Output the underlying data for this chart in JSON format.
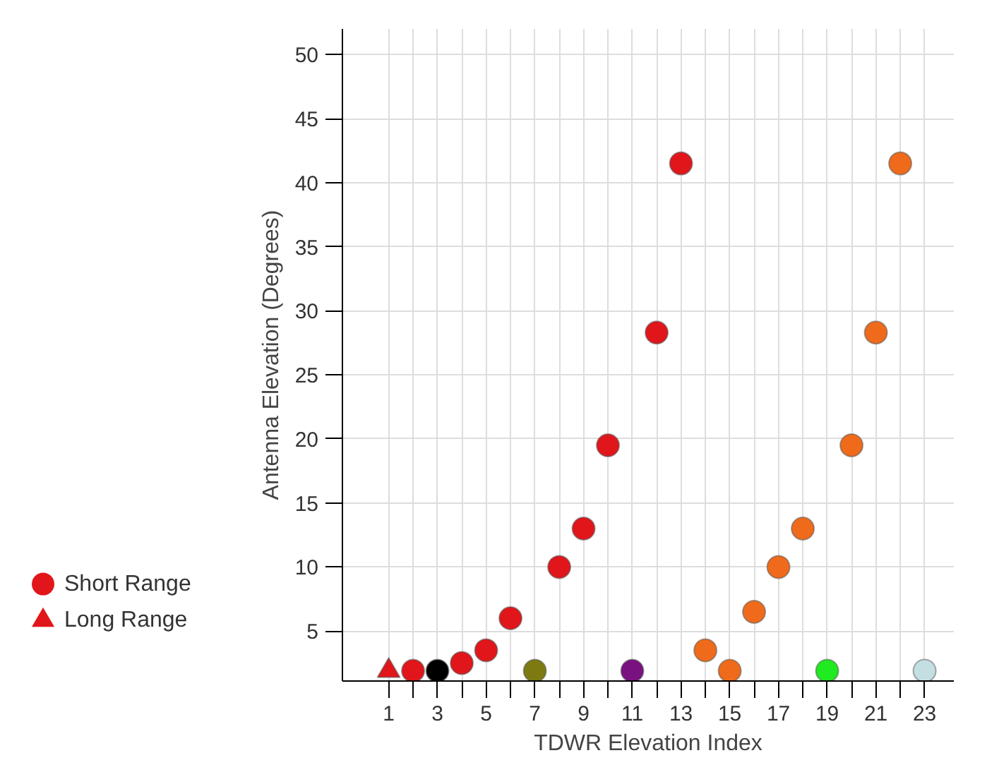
{
  "chart_data": {
    "type": "scatter",
    "xlabel": "TDWR Elevation Index",
    "ylabel": "Antenna Elevation (Degrees)",
    "xlim": [
      -0.9,
      24.2
    ],
    "ylim": [
      1.1,
      52
    ],
    "xticks": [
      1,
      {
        "value": 2,
        "label": null
      },
      3,
      {
        "value": 4,
        "label": null
      },
      5,
      {
        "value": 6,
        "label": null
      },
      7,
      {
        "value": 8,
        "label": null
      },
      9,
      {
        "value": 10,
        "label": null
      },
      11,
      {
        "value": 12,
        "label": null
      },
      13,
      {
        "value": 14,
        "label": null
      },
      15,
      {
        "value": 16,
        "label": null
      },
      17,
      {
        "value": 18,
        "label": null
      },
      19,
      {
        "value": 20,
        "label": null
      },
      21,
      {
        "value": 22,
        "label": null
      },
      23
    ],
    "yticks": [
      5,
      10,
      15,
      20,
      25,
      30,
      35,
      40,
      45,
      50
    ],
    "grid": true,
    "legend": "bottom left",
    "series": [
      {
        "name": "Short Range",
        "marker": "circle",
        "color": "#e0161b",
        "x": [
          2,
          3,
          4,
          5,
          6,
          7,
          8,
          9,
          10,
          11,
          12,
          13,
          14,
          15,
          16,
          17,
          18,
          19,
          20,
          21,
          22,
          23
        ],
        "values": [
          1.9,
          1.9,
          2.5,
          3.5,
          6,
          1.9,
          10,
          13,
          19.5,
          1.9,
          28.3,
          41.5,
          3.5,
          1.9,
          6.5,
          10,
          13,
          1.9,
          19.5,
          28.3,
          41.5,
          1.9
        ],
        "colors": [
          "#e0161b",
          "#000000",
          "#e0161b",
          "#e0161b",
          "#e0161b",
          "#7d7a12",
          "#e0161b",
          "#e0161b",
          "#e0161b",
          "#7a1180",
          "#e0161b",
          "#e0161b",
          "#ef6b1b",
          "#ef6b1b",
          "#ef6b1b",
          "#ef6b1b",
          "#ef6b1b",
          "#20ea20",
          "#ef6b1b",
          "#ef6b1b",
          "#ef6b1b",
          "#c4dfe2"
        ]
      },
      {
        "name": "Long Range",
        "marker": "triangle",
        "color": "#e0161b",
        "x": [
          1
        ],
        "values": [
          1.9
        ]
      }
    ]
  }
}
